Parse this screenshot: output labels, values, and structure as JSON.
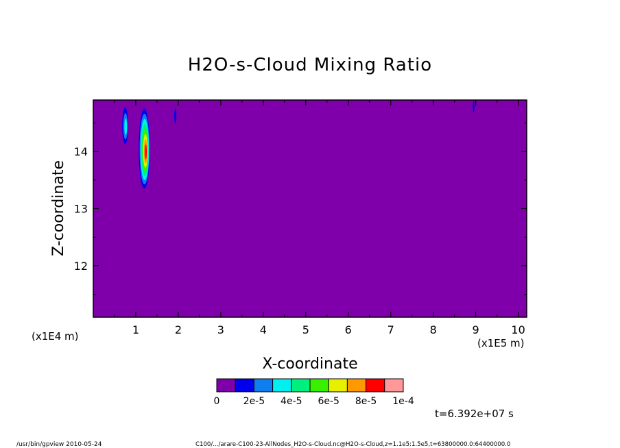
{
  "chart_data": {
    "type": "heatmap",
    "title": "H2O-s-Cloud Mixing Ratio",
    "xlabel": "X-coordinate",
    "ylabel": "Z-coordinate",
    "x_unit_label": "(x1E5 m)",
    "y_unit_label": "(x1E4 m)",
    "xlim": [
      0,
      10.2
    ],
    "ylim": [
      11.1,
      14.9
    ],
    "x_ticks": [
      "1",
      "2",
      "3",
      "4",
      "5",
      "6",
      "7",
      "8",
      "9",
      "10"
    ],
    "y_ticks": [
      "12",
      "13",
      "14"
    ],
    "background_level": 0,
    "colorbar": {
      "colors": [
        "#7f00aa",
        "#0000ee",
        "#0f7ff0",
        "#00f0f0",
        "#00f07f",
        "#38f000",
        "#e8f000",
        "#ff9900",
        "#ff0000",
        "#ff9999"
      ],
      "labels": [
        "0",
        "2e-5",
        "4e-5",
        "6e-5",
        "8e-5",
        "1e-4"
      ]
    },
    "time_label": "t=6.392e+07 s",
    "cloud_features": [
      {
        "x": 1.2,
        "z": 14.05,
        "rx": 0.13,
        "rz": 0.7,
        "levels": 8
      },
      {
        "x": 0.75,
        "z": 14.45,
        "rx": 0.07,
        "rz": 0.32,
        "levels": 3
      },
      {
        "x": 1.93,
        "z": 14.62,
        "rx": 0.025,
        "rz": 0.13,
        "levels": 1
      },
      {
        "x": 8.95,
        "z": 14.78,
        "rx": 0.02,
        "rz": 0.1,
        "levels": 1
      }
    ]
  },
  "footer": {
    "left": "/usr/bin/gpview  2010-05-24",
    "right": "C100/.../arare-C100-23-AllNodes_H2O-s-Cloud.nc@H2O-s-Cloud,z=1.1e5:1.5e5,t=63800000.0:64400000.0"
  }
}
